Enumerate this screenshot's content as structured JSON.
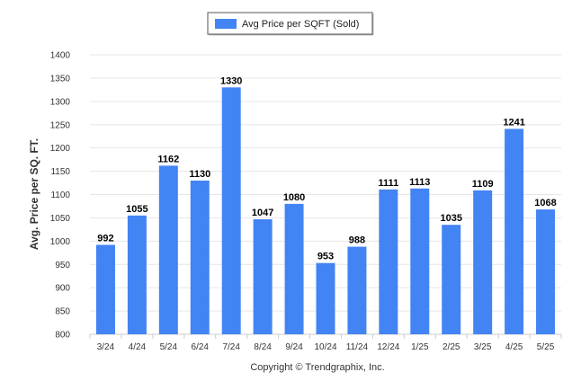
{
  "chart_data": {
    "type": "bar",
    "ylabel": "Avg. Price per SQ. FT.",
    "xlabel": "",
    "ylim": [
      800,
      1400
    ],
    "yticks": [
      800,
      850,
      900,
      950,
      1000,
      1050,
      1100,
      1150,
      1200,
      1250,
      1300,
      1350,
      1400
    ],
    "grid": true,
    "legend_position": "top-center",
    "categories": [
      "3/24",
      "4/24",
      "5/24",
      "6/24",
      "7/24",
      "8/24",
      "9/24",
      "10/24",
      "11/24",
      "12/24",
      "1/25",
      "2/25",
      "3/25",
      "4/25",
      "5/25"
    ],
    "series": [
      {
        "name": "Avg Price per SQFT (Sold)",
        "color": "#4384f4",
        "values": [
          992,
          1055,
          1162,
          1130,
          1330,
          1047,
          1080,
          953,
          988,
          1111,
          1113,
          1035,
          1109,
          1241,
          1068
        ]
      }
    ]
  },
  "footer": {
    "copyright": "Copyright © Trendgraphix, Inc."
  }
}
